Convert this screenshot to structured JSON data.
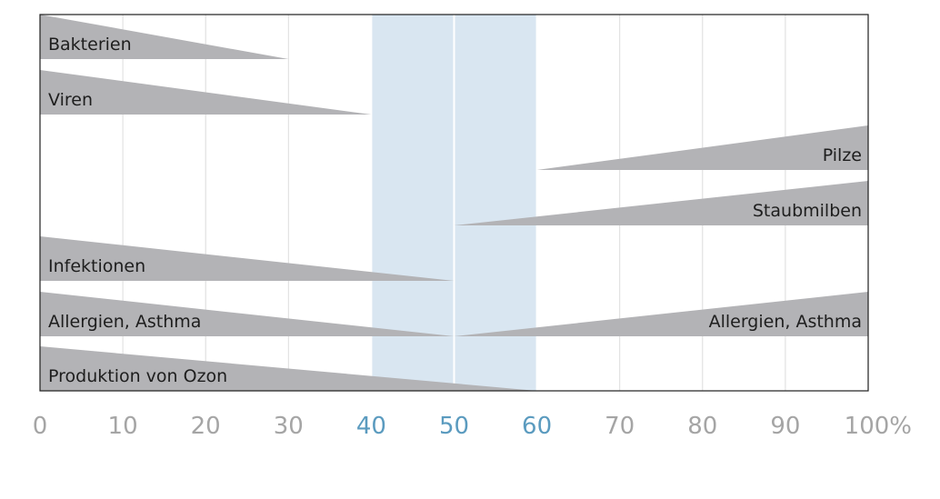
{
  "chart_data": {
    "type": "bar",
    "xlim": [
      0,
      100
    ],
    "x_ticks": [
      {
        "value": 0,
        "label": "0"
      },
      {
        "value": 10,
        "label": "10"
      },
      {
        "value": 20,
        "label": "20"
      },
      {
        "value": 30,
        "label": "30"
      },
      {
        "value": 40,
        "label": "40"
      },
      {
        "value": 50,
        "label": "50"
      },
      {
        "value": 60,
        "label": "60"
      },
      {
        "value": 70,
        "label": "70"
      },
      {
        "value": 80,
        "label": "80"
      },
      {
        "value": 90,
        "label": "90"
      },
      {
        "value": 100,
        "label": "100%"
      }
    ],
    "optimal_range": [
      40,
      60
    ],
    "grid": true,
    "bars": [
      {
        "name": "Bakterien",
        "row": 0,
        "from": 0,
        "to": 30
      },
      {
        "name": "Viren",
        "row": 1,
        "from": 0,
        "to": 40
      },
      {
        "name": "Pilze",
        "row": 2,
        "from": 60,
        "to": 100
      },
      {
        "name": "Staubmilben",
        "row": 3,
        "from": 50,
        "to": 100
      },
      {
        "name": "Infektionen",
        "row": 4,
        "from": 0,
        "to": 50
      },
      {
        "name": "Allergien, Asthma",
        "row": 5,
        "from": 0,
        "to": 50
      },
      {
        "name": "Allergien, Asthma",
        "row": 5,
        "from": 50,
        "to": 100
      },
      {
        "name": "Produktion von Ozon",
        "row": 6,
        "from": 0,
        "to": 60
      }
    ],
    "colors": {
      "bar": "#b3b3b6",
      "optimal_band": "#d9e6f1",
      "grid": "#dcdcdc",
      "frame": "#1e1e1e",
      "tick": "#a5a5a5",
      "tick_highlight": "#5b9bbf"
    }
  }
}
